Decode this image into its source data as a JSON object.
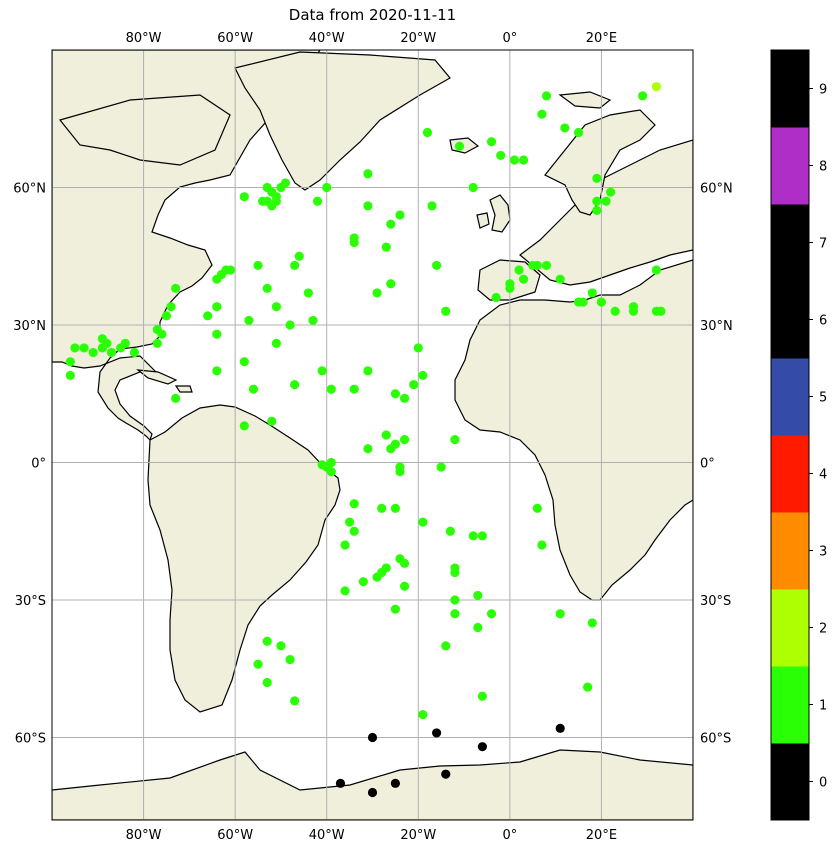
{
  "title": "Data from 2020-11-11",
  "map": {
    "lon_range": [
      -100,
      40
    ],
    "lat_range": [
      -78,
      90
    ],
    "lon_ticks": [
      {
        "value": -80,
        "label": "80°W"
      },
      {
        "value": -60,
        "label": "60°W"
      },
      {
        "value": -40,
        "label": "40°W"
      },
      {
        "value": -20,
        "label": "20°W"
      },
      {
        "value": 0,
        "label": "0°"
      },
      {
        "value": 20,
        "label": "20°E"
      }
    ],
    "lat_ticks": [
      {
        "value": 60,
        "label": "60°N"
      },
      {
        "value": 30,
        "label": "30°N"
      },
      {
        "value": 0,
        "label": "0°"
      },
      {
        "value": -30,
        "label": "30°S"
      },
      {
        "value": -60,
        "label": "60°S"
      }
    ],
    "grid": true,
    "ocean_color": "#ffffff",
    "land_color": "#efefdb",
    "coast_color": "#000000",
    "grid_color": "#b0b0b0"
  },
  "colorbar": {
    "colors": [
      "#000000",
      "#2bff06",
      "#adff02",
      "#ff8c00",
      "#ff1a00",
      "#344ba8",
      "#000000",
      "#000000",
      "#b02ec8",
      "#000000"
    ],
    "labels": [
      "0",
      "1",
      "2",
      "3",
      "4",
      "5",
      "6",
      "7",
      "8",
      "9"
    ]
  },
  "points": {
    "colors": {
      "1": "#2bff06",
      "2": "#adff02",
      "0": "#000000"
    },
    "class1": [
      [
        -95,
        25
      ],
      [
        -96,
        22
      ],
      [
        -96,
        19
      ],
      [
        -93,
        25
      ],
      [
        -91,
        24
      ],
      [
        -89,
        25
      ],
      [
        -88,
        26
      ],
      [
        -87,
        24
      ],
      [
        -85,
        25
      ],
      [
        -84,
        26
      ],
      [
        -89,
        27
      ],
      [
        -82,
        24
      ],
      [
        -77,
        26
      ],
      [
        -77,
        29
      ],
      [
        -76,
        28
      ],
      [
        -75,
        32
      ],
      [
        -74,
        34
      ],
      [
        -73,
        38
      ],
      [
        -73,
        14
      ],
      [
        -64,
        34
      ],
      [
        -64,
        40
      ],
      [
        -63,
        41
      ],
      [
        -62,
        42
      ],
      [
        -61,
        42
      ],
      [
        -66,
        32
      ],
      [
        -64,
        28
      ],
      [
        -64,
        20
      ],
      [
        -58,
        58
      ],
      [
        -54,
        57
      ],
      [
        -53,
        57
      ],
      [
        -52,
        56
      ],
      [
        -51,
        58
      ],
      [
        -53,
        60
      ],
      [
        -52,
        59
      ],
      [
        -50,
        60
      ],
      [
        -49,
        61
      ],
      [
        -51,
        57
      ],
      [
        -55,
        43
      ],
      [
        -53,
        38
      ],
      [
        -51,
        34
      ],
      [
        -48,
        30
      ],
      [
        -51,
        26
      ],
      [
        -57,
        31
      ],
      [
        -58,
        22
      ],
      [
        -56,
        16
      ],
      [
        -58,
        8
      ],
      [
        -52,
        9
      ],
      [
        -47,
        43
      ],
      [
        -46,
        45
      ],
      [
        -44,
        37
      ],
      [
        -43,
        31
      ],
      [
        -47,
        17
      ],
      [
        -41,
        20
      ],
      [
        -39,
        16
      ],
      [
        -34,
        16
      ],
      [
        -42,
        57
      ],
      [
        -40,
        60
      ],
      [
        -34,
        49
      ],
      [
        -34,
        48
      ],
      [
        -31,
        56
      ],
      [
        -31,
        63
      ],
      [
        -26,
        52
      ],
      [
        -24,
        54
      ],
      [
        -27,
        47
      ],
      [
        -26,
        39
      ],
      [
        -29,
        37
      ],
      [
        -18,
        72
      ],
      [
        -17,
        56
      ],
      [
        -16,
        43
      ],
      [
        -11,
        69
      ],
      [
        -8,
        60
      ],
      [
        -14,
        33
      ],
      [
        -20,
        25
      ],
      [
        -19,
        19
      ],
      [
        -21,
        17
      ],
      [
        -23,
        14
      ],
      [
        -25,
        15
      ],
      [
        -31,
        20
      ],
      [
        -31,
        3
      ],
      [
        -27,
        6
      ],
      [
        -26,
        3
      ],
      [
        -25,
        4
      ],
      [
        -23,
        5
      ],
      [
        -24,
        -1
      ],
      [
        -24,
        -2
      ],
      [
        -15,
        -1
      ],
      [
        -12,
        5
      ],
      [
        -41,
        -0.5
      ],
      [
        -39,
        0
      ],
      [
        -40,
        -1
      ],
      [
        -39,
        -2
      ],
      [
        -34,
        -9
      ],
      [
        -35,
        -13
      ],
      [
        -34,
        -15
      ],
      [
        -36,
        -18
      ],
      [
        -36,
        -28
      ],
      [
        -32,
        -26
      ],
      [
        -29,
        -25
      ],
      [
        -28,
        -24
      ],
      [
        -27,
        -23
      ],
      [
        -24,
        -21
      ],
      [
        -23,
        -22
      ],
      [
        -23,
        -27
      ],
      [
        -25,
        -32
      ],
      [
        -25,
        -10
      ],
      [
        -28,
        -10
      ],
      [
        -19,
        -13
      ],
      [
        -13,
        -15
      ],
      [
        -12,
        -23
      ],
      [
        -12,
        -24
      ],
      [
        -12,
        -30
      ],
      [
        -12,
        -33
      ],
      [
        -14,
        -40
      ],
      [
        -8,
        -16
      ],
      [
        -6,
        -16
      ],
      [
        -7,
        -29
      ],
      [
        -4,
        -33
      ],
      [
        -7,
        -36
      ],
      [
        -6,
        -51
      ],
      [
        -19,
        -55
      ],
      [
        6,
        -10
      ],
      [
        7,
        -18
      ],
      [
        11,
        -33
      ],
      [
        18,
        -35
      ],
      [
        17,
        -49
      ],
      [
        -53,
        -39
      ],
      [
        -50,
        -40
      ],
      [
        -55,
        -44
      ],
      [
        -48,
        -43
      ],
      [
        -53,
        -48
      ],
      [
        -47,
        -52
      ],
      [
        -4,
        70
      ],
      [
        -2,
        67
      ],
      [
        1,
        66
      ],
      [
        3,
        66
      ],
      [
        7,
        76
      ],
      [
        8,
        80
      ],
      [
        12,
        73
      ],
      [
        15,
        72
      ],
      [
        19,
        62
      ],
      [
        19,
        55
      ],
      [
        19,
        57
      ],
      [
        21,
        57
      ],
      [
        22,
        59
      ],
      [
        -3,
        36
      ],
      [
        0,
        38
      ],
      [
        0,
        39
      ],
      [
        2,
        42
      ],
      [
        3,
        40
      ],
      [
        5,
        43
      ],
      [
        6,
        43
      ],
      [
        8,
        43
      ],
      [
        11,
        40
      ],
      [
        15,
        35
      ],
      [
        16,
        35
      ],
      [
        18,
        37
      ],
      [
        20,
        35
      ],
      [
        23,
        33
      ],
      [
        27,
        33
      ],
      [
        27,
        34
      ],
      [
        32,
        33
      ],
      [
        33,
        33
      ],
      [
        32,
        42
      ],
      [
        29,
        80
      ]
    ],
    "class2": [
      [
        32,
        82
      ]
    ],
    "class0": [
      [
        -30,
        -60
      ],
      [
        -16,
        -59
      ],
      [
        11,
        -58
      ],
      [
        -6,
        -62
      ],
      [
        -37,
        -70
      ],
      [
        -30,
        -72
      ],
      [
        -25,
        -70
      ],
      [
        -14,
        -68
      ]
    ]
  }
}
